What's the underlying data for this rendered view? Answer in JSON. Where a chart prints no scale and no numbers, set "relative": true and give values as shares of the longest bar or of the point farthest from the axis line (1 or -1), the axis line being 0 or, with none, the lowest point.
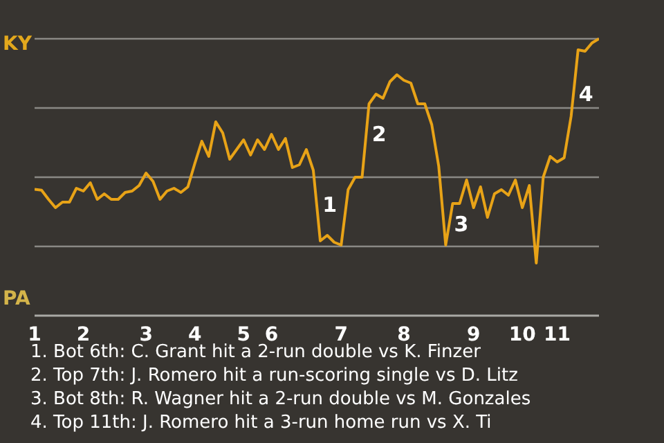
{
  "chart_data": {
    "type": "line",
    "relative": true,
    "categories": [
      "1",
      null,
      null,
      null,
      null,
      null,
      null,
      "2",
      null,
      null,
      null,
      null,
      null,
      null,
      null,
      null,
      "3",
      null,
      null,
      null,
      null,
      null,
      null,
      "4",
      null,
      null,
      null,
      null,
      null,
      null,
      "5",
      null,
      null,
      null,
      "6",
      null,
      null,
      null,
      null,
      null,
      null,
      null,
      null,
      null,
      "7",
      null,
      null,
      null,
      null,
      null,
      null,
      null,
      null,
      "8",
      null,
      null,
      null,
      null,
      null,
      null,
      null,
      null,
      null,
      "9",
      null,
      null,
      null,
      null,
      null,
      null,
      "10",
      null,
      null,
      null,
      null,
      "11",
      null,
      null,
      null,
      null,
      null,
      null
    ],
    "series": [
      {
        "color": "#e8a317",
        "values": [
          0.456,
          0.453,
          0.42,
          0.39,
          0.41,
          0.41,
          0.46,
          0.45,
          0.48,
          0.42,
          0.44,
          0.42,
          0.42,
          0.445,
          0.45,
          0.47,
          0.515,
          0.485,
          0.42,
          0.45,
          0.46,
          0.445,
          0.465,
          0.55,
          0.63,
          0.575,
          0.7,
          0.66,
          0.565,
          0.6,
          0.635,
          0.58,
          0.635,
          0.6,
          0.655,
          0.6,
          0.64,
          0.535,
          0.545,
          0.6,
          0.525,
          0.27,
          0.29,
          0.265,
          0.255,
          0.455,
          0.5,
          0.5,
          0.765,
          0.8,
          0.785,
          0.845,
          0.87,
          0.85,
          0.84,
          0.765,
          0.765,
          0.69,
          0.54,
          0.255,
          0.405,
          0.405,
          0.49,
          0.39,
          0.465,
          0.355,
          0.44,
          0.455,
          0.435,
          0.49,
          0.39,
          0.47,
          0.19,
          0.5,
          0.575,
          0.555,
          0.57,
          0.72,
          0.96,
          0.955,
          0.985,
          1.0
        ]
      }
    ],
    "grid": "y",
    "annotations": [
      "KY",
      "PA",
      "1",
      "2",
      "3",
      "4",
      "1. Bot 6th: C. Grant hit a 2-run double vs K. Finzer",
      "2. Top 7th: J. Romero hit a run-scoring single vs D. Litz",
      "3. Bot 8th: R. Wagner hit a 2-run double vs M. Gonzales",
      "4. Top 11th: J. Romero hit a 3-run home run vs X. Ti"
    ]
  }
}
